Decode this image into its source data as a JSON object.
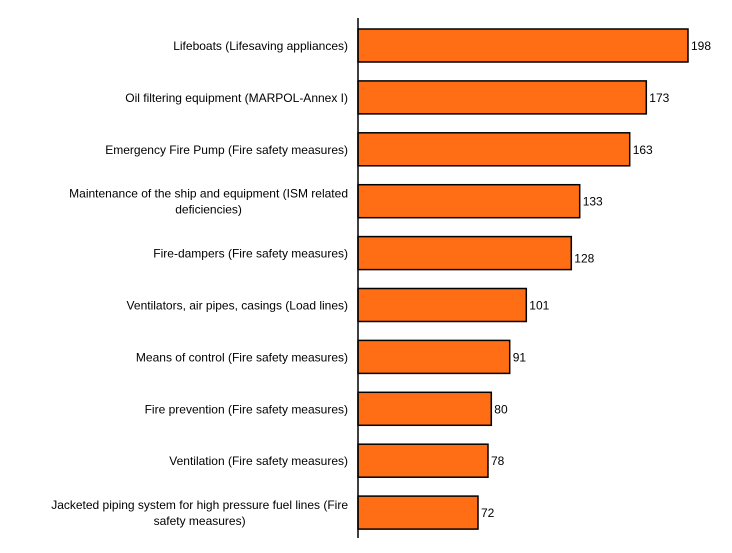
{
  "chart_data": {
    "type": "bar",
    "orientation": "horizontal",
    "categories": [
      "Lifeboats (Lifesaving appliances)",
      "Oil filtering equipment (MARPOL-Annex I)",
      "Emergency Fire Pump (Fire safety measures)",
      "Maintenance of the ship and equipment (ISM related deficiencies)",
      "Fire-dampers (Fire safety measures)",
      "Ventilators, air pipes, casings (Load lines)",
      "Means of control (Fire safety measures)",
      "Fire prevention (Fire safety measures)",
      "Ventilation (Fire safety measures)",
      "Jacketed piping system for high pressure fuel lines (Fire safety measures)"
    ],
    "category_lines": [
      [
        "Lifeboats (Lifesaving appliances)"
      ],
      [
        "Oil filtering equipment (MARPOL-Annex I)"
      ],
      [
        "Emergency Fire Pump (Fire safety measures)"
      ],
      [
        "Maintenance of the ship and equipment (ISM related",
        "deficiencies)"
      ],
      [
        "Fire-dampers (Fire safety measures)"
      ],
      [
        "Ventilators, air pipes, casings (Load lines)"
      ],
      [
        "Means of control (Fire safety measures)"
      ],
      [
        "Fire prevention (Fire safety measures)"
      ],
      [
        "Ventilation (Fire safety measures)"
      ],
      [
        "Jacketed piping system for high pressure fuel lines (Fire",
        "safety measures)"
      ]
    ],
    "values": [
      198,
      173,
      163,
      133,
      128,
      101,
      91,
      80,
      78,
      72
    ],
    "value_labels": [
      "198",
      "173",
      "163",
      "133",
      "128",
      "101",
      "91",
      "80",
      "78",
      "72"
    ],
    "title": "",
    "xlabel": "",
    "ylabel": "",
    "xlim": [
      0,
      200
    ],
    "grid": false,
    "legend": "none",
    "colors": {
      "bar_fill": "#FF6D14",
      "bar_stroke": "#000000",
      "axis": "#000000"
    }
  }
}
